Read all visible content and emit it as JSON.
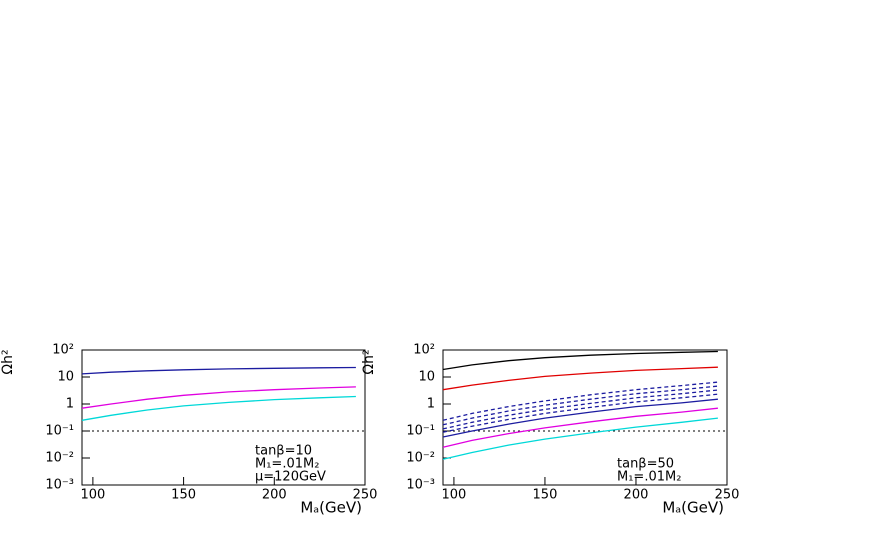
{
  "chart_data": [
    {
      "type": "line",
      "x_label": "Mₐ(GeV)",
      "y_label": "Ωh²",
      "log_y": true,
      "x": [
        94,
        110,
        130,
        150,
        175,
        200,
        225,
        245
      ],
      "xlim": [
        94,
        250
      ],
      "xticks": [
        100,
        150,
        200,
        250
      ],
      "ylim": [
        0.001,
        100
      ],
      "yticks": [
        {
          "value": 0.001,
          "label": "10⁻³"
        },
        {
          "value": 0.01,
          "label": "10⁻²"
        },
        {
          "value": 0.1,
          "label": "10⁻¹"
        },
        1,
        10,
        {
          "value": 100,
          "label": "10²"
        }
      ],
      "reference_line": {
        "value": 0.1,
        "style": "dotted"
      },
      "annotations": [
        "tanβ=10",
        "M₁=.01M₂",
        "μ=120GeV"
      ],
      "series": [
        {
          "color": "#1c1ca0",
          "dash": "solid",
          "values": [
            13,
            15,
            17,
            18.5,
            20,
            21,
            22,
            22.5
          ]
        },
        {
          "color": "#e000e0",
          "dash": "solid",
          "values": [
            0.7,
            1.0,
            1.5,
            2.1,
            2.8,
            3.4,
            3.9,
            4.3
          ]
        },
        {
          "color": "#00d8d8",
          "dash": "solid",
          "values": [
            0.25,
            0.38,
            0.6,
            0.85,
            1.15,
            1.45,
            1.7,
            1.9
          ]
        }
      ]
    },
    {
      "type": "line",
      "x_label": "Mₐ(GeV)",
      "y_label": "Ωh²",
      "log_y": true,
      "x": [
        94,
        110,
        130,
        150,
        175,
        200,
        225,
        245
      ],
      "xlim": [
        94,
        250
      ],
      "xticks": [
        100,
        150,
        200,
        250
      ],
      "ylim": [
        0.001,
        100
      ],
      "yticks": [
        {
          "value": 0.001,
          "label": "10⁻³"
        },
        {
          "value": 0.01,
          "label": "10⁻²"
        },
        {
          "value": 0.1,
          "label": "10⁻¹"
        },
        1,
        10,
        {
          "value": 100,
          "label": "10²"
        }
      ],
      "reference_line": {
        "value": 0.1,
        "style": "dotted"
      },
      "annotations": [
        "tanβ=50",
        "M₁=.01M₂"
      ],
      "series": [
        {
          "color": "#000000",
          "dash": "solid",
          "values": [
            19,
            28,
            40,
            52,
            64,
            74,
            82,
            88
          ]
        },
        {
          "color": "#e00000",
          "dash": "solid",
          "values": [
            3.4,
            5,
            7.5,
            10.5,
            14,
            17.5,
            20.5,
            23
          ]
        },
        {
          "color": "#1c1ca0",
          "dash": "dashed",
          "values": [
            0.25,
            0.45,
            0.8,
            1.3,
            2.2,
            3.4,
            4.8,
            6.5
          ]
        },
        {
          "color": "#1c1ca0",
          "dash": "dashed",
          "values": [
            0.17,
            0.3,
            0.55,
            0.9,
            1.5,
            2.4,
            3.4,
            4.6
          ]
        },
        {
          "color": "#1c1ca0",
          "dash": "dashed",
          "values": [
            0.12,
            0.21,
            0.38,
            0.63,
            1.05,
            1.7,
            2.4,
            3.3
          ]
        },
        {
          "color": "#1c1ca0",
          "dash": "dashed",
          "values": [
            0.09,
            0.15,
            0.27,
            0.45,
            0.75,
            1.2,
            1.7,
            2.3
          ]
        },
        {
          "color": "#1c1ca0",
          "dash": "solid",
          "values": [
            0.06,
            0.1,
            0.18,
            0.3,
            0.5,
            0.8,
            1.1,
            1.5
          ]
        },
        {
          "color": "#e000e0",
          "dash": "solid",
          "values": [
            0.025,
            0.045,
            0.08,
            0.13,
            0.22,
            0.35,
            0.5,
            0.7
          ]
        },
        {
          "color": "#00d8d8",
          "dash": "solid",
          "values": [
            0.009,
            0.016,
            0.03,
            0.05,
            0.085,
            0.14,
            0.21,
            0.3
          ]
        }
      ]
    }
  ]
}
